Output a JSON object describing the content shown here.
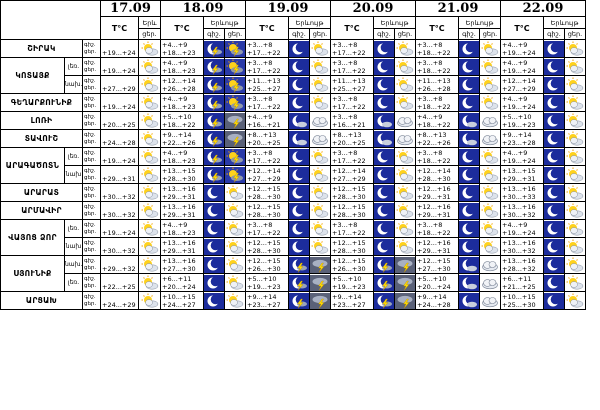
{
  "header": {
    "dates": [
      "17.09",
      "18.09",
      "19.09",
      "20.09",
      "21.09",
      "22.09"
    ],
    "tc_label": "T°C",
    "first_ek_label": "Երև",
    "first_sub_label": "ցեր.",
    "ek_label": "Երևույթ",
    "sub_night": "գիշ.",
    "sub_day": "ցեր."
  },
  "time_labels": {
    "night": "գիշ.",
    "day": "ցեր."
  },
  "regions": [
    {
      "name": "ՇԻՐԱԿ",
      "subs": [
        {
          "label": "",
          "d17": "+19...+24",
          "days": [
            {
              "n": "+4...+9",
              "d": "+18...+23",
              "i": [
                "moon-storm",
                "sun-storm"
              ]
            },
            {
              "n": "+3...+8",
              "d": "+17...+22",
              "i": [
                "moon",
                "sun-cloud"
              ]
            },
            {
              "n": "+3...+8",
              "d": "+17...+22",
              "i": [
                "moon",
                "sun-cloud"
              ]
            },
            {
              "n": "+3...+8",
              "d": "+18...+22",
              "i": [
                "moon",
                "sun-cloud"
              ]
            },
            {
              "n": "+4...+9",
              "d": "+19...+24",
              "i": [
                "moon",
                "sun-cloud"
              ]
            }
          ]
        }
      ]
    },
    {
      "name": "ԿՈՏԱՅՔ",
      "subs": [
        {
          "label": "լեռ.",
          "d17": "+19...+24",
          "days": [
            {
              "n": "+4...+9",
              "d": "+18...+23",
              "i": [
                "moon-storm",
                "sun-storm"
              ]
            },
            {
              "n": "+3...+8",
              "d": "+17...+22",
              "i": [
                "moon",
                "sun-cloud"
              ]
            },
            {
              "n": "+3...+8",
              "d": "+17...+22",
              "i": [
                "moon",
                "sun-cloud"
              ]
            },
            {
              "n": "+3...+8",
              "d": "+18...+22",
              "i": [
                "moon",
                "sun-cloud"
              ]
            },
            {
              "n": "+4...+9",
              "d": "+19...+24",
              "i": [
                "moon",
                "sun-cloud"
              ]
            }
          ]
        },
        {
          "label": "նախ.",
          "d17": "+27...+29",
          "days": [
            {
              "n": "+12...+14",
              "d": "+26...+28",
              "i": [
                "moon-storm",
                "sun-storm"
              ]
            },
            {
              "n": "+11...+13",
              "d": "+25...+27",
              "i": [
                "moon",
                "sun-cloud"
              ]
            },
            {
              "n": "+11...+13",
              "d": "+25...+27",
              "i": [
                "moon",
                "sun-cloud"
              ]
            },
            {
              "n": "+11...+13",
              "d": "+26...+28",
              "i": [
                "moon",
                "sun-cloud"
              ]
            },
            {
              "n": "+12...+14",
              "d": "+27...+29",
              "i": [
                "moon",
                "sun-cloud"
              ]
            }
          ]
        }
      ]
    },
    {
      "name": "ԳԵՂԱՐՔՈՒՆԻՔ",
      "subs": [
        {
          "label": "",
          "d17": "+19...+24",
          "days": [
            {
              "n": "+4...+9",
              "d": "+18...+23",
              "i": [
                "moon-storm",
                "sun-storm"
              ]
            },
            {
              "n": "+3...+8",
              "d": "+17...+22",
              "i": [
                "moon",
                "sun-cloud"
              ]
            },
            {
              "n": "+3...+8",
              "d": "+17...+22",
              "i": [
                "moon",
                "sun-cloud"
              ]
            },
            {
              "n": "+3...+8",
              "d": "+18...+22",
              "i": [
                "moon",
                "sun-cloud"
              ]
            },
            {
              "n": "+4...+9",
              "d": "+19...+24",
              "i": [
                "moon",
                "sun-cloud"
              ]
            }
          ]
        }
      ]
    },
    {
      "name": "ԼՈՌԻ",
      "subs": [
        {
          "label": "",
          "d17": "+20...+25",
          "days": [
            {
              "n": "+5...+10",
              "d": "+18...+22",
              "i": [
                "moon-storm",
                "cloud-storm"
              ]
            },
            {
              "n": "+4...+9",
              "d": "+16...+21",
              "i": [
                "moon-cloud",
                "cloud"
              ]
            },
            {
              "n": "+3...+8",
              "d": "+16...+21",
              "i": [
                "moon-cloud",
                "cloud"
              ]
            },
            {
              "n": "+4...+9",
              "d": "+18...+22",
              "i": [
                "moon-cloud",
                "cloud"
              ]
            },
            {
              "n": "+5...+10",
              "d": "+19...+23",
              "i": [
                "moon",
                "sun-cloud"
              ]
            }
          ]
        }
      ]
    },
    {
      "name": "ՏԱՎՈՒՇ",
      "subs": [
        {
          "label": "",
          "d17": "+24...+28",
          "days": [
            {
              "n": "+9...+14",
              "d": "+22...+26",
              "i": [
                "moon-storm",
                "cloud-storm"
              ]
            },
            {
              "n": "+8...+13",
              "d": "+20...+25",
              "i": [
                "moon-cloud",
                "cloud"
              ]
            },
            {
              "n": "+8...+13",
              "d": "+20...+25",
              "i": [
                "moon-cloud",
                "cloud"
              ]
            },
            {
              "n": "+8...+13",
              "d": "+22...+26",
              "i": [
                "moon-cloud",
                "cloud"
              ]
            },
            {
              "n": "+9...+14",
              "d": "+23...+28",
              "i": [
                "moon",
                "sun-cloud"
              ]
            }
          ]
        }
      ]
    },
    {
      "name": "ԱՐԱԳԱԾՈՏՆ",
      "subs": [
        {
          "label": "լեռ.",
          "d17": "+19...+24",
          "days": [
            {
              "n": "+4...+9",
              "d": "+18...+23",
              "i": [
                "moon-storm",
                "sun-storm"
              ]
            },
            {
              "n": "+3...+8",
              "d": "+17...+22",
              "i": [
                "moon",
                "sun-cloud"
              ]
            },
            {
              "n": "+3...+8",
              "d": "+17...+22",
              "i": [
                "moon",
                "sun-cloud"
              ]
            },
            {
              "n": "+3...+8",
              "d": "+18...+22",
              "i": [
                "moon",
                "sun-cloud"
              ]
            },
            {
              "n": "+4...+9",
              "d": "+19...+24",
              "i": [
                "moon",
                "sun-cloud"
              ]
            }
          ]
        },
        {
          "label": "նախ",
          "d17": "+29...+31",
          "days": [
            {
              "n": "+13...+15",
              "d": "+28...+30",
              "i": [
                "moon-storm",
                "sun-storm"
              ]
            },
            {
              "n": "+12...+14",
              "d": "+27...+29",
              "i": [
                "moon",
                "sun-cloud"
              ]
            },
            {
              "n": "+12...+14",
              "d": "+27...+29",
              "i": [
                "moon",
                "sun-cloud"
              ]
            },
            {
              "n": "+12...+14",
              "d": "+28...+30",
              "i": [
                "moon",
                "sun-cloud"
              ]
            },
            {
              "n": "+13...+15",
              "d": "+29...+31",
              "i": [
                "moon",
                "sun-cloud"
              ]
            }
          ]
        }
      ]
    },
    {
      "name": "ԱՐԱՐԱՏ",
      "subs": [
        {
          "label": "",
          "d17": "+30...+32",
          "days": [
            {
              "n": "+13...+16",
              "d": "+29...+31",
              "i": [
                "moon",
                "sun-cloud"
              ]
            },
            {
              "n": "+12...+15",
              "d": "+28...+30",
              "i": [
                "moon",
                "sun-cloud"
              ]
            },
            {
              "n": "+12...+15",
              "d": "+28...+30",
              "i": [
                "moon",
                "sun-cloud"
              ]
            },
            {
              "n": "+12...+16",
              "d": "+29...+31",
              "i": [
                "moon",
                "sun-cloud"
              ]
            },
            {
              "n": "+13...+16",
              "d": "+30...+33",
              "i": [
                "moon",
                "sun-cloud"
              ]
            }
          ]
        }
      ]
    },
    {
      "name": "ԱՐՄԱՎԻՐ",
      "subs": [
        {
          "label": "",
          "d17": "+30...+32",
          "days": [
            {
              "n": "+13...+16",
              "d": "+29...+31",
              "i": [
                "moon",
                "sun-cloud"
              ]
            },
            {
              "n": "+12...+15",
              "d": "+28...+30",
              "i": [
                "moon",
                "sun-cloud"
              ]
            },
            {
              "n": "+12...+15",
              "d": "+28...+30",
              "i": [
                "moon",
                "sun-cloud"
              ]
            },
            {
              "n": "+12...+16",
              "d": "+29...+31",
              "i": [
                "moon",
                "sun-cloud"
              ]
            },
            {
              "n": "+13...+16",
              "d": "+30...+32",
              "i": [
                "moon",
                "sun-cloud"
              ]
            }
          ]
        }
      ]
    },
    {
      "name": "ՎԱՅՈՑ ՁՈՐ",
      "subs": [
        {
          "label": "լեռ.",
          "d17": "+19...+24",
          "days": [
            {
              "n": "+4...+9",
              "d": "+18...+23",
              "i": [
                "moon",
                "sun-cloud"
              ]
            },
            {
              "n": "+3...+8",
              "d": "+17...+22",
              "i": [
                "moon",
                "sun-cloud"
              ]
            },
            {
              "n": "+3...+8",
              "d": "+17...+22",
              "i": [
                "moon",
                "sun-cloud"
              ]
            },
            {
              "n": "+3...+8",
              "d": "+18...+22",
              "i": [
                "moon",
                "sun-cloud"
              ]
            },
            {
              "n": "+4...+9",
              "d": "+19...+24",
              "i": [
                "moon",
                "sun-cloud"
              ]
            }
          ]
        },
        {
          "label": "նախ",
          "d17": "+30...+32",
          "days": [
            {
              "n": "+13...+16",
              "d": "+29...+31",
              "i": [
                "moon",
                "sun-cloud"
              ]
            },
            {
              "n": "+12...+15",
              "d": "+28...+30",
              "i": [
                "moon",
                "sun-cloud"
              ]
            },
            {
              "n": "+12...+15",
              "d": "+28...+30",
              "i": [
                "moon",
                "sun-cloud"
              ]
            },
            {
              "n": "+12...+16",
              "d": "+29...+31",
              "i": [
                "moon",
                "sun-cloud"
              ]
            },
            {
              "n": "+13...+16",
              "d": "+30...+32",
              "i": [
                "moon",
                "sun-cloud"
              ]
            }
          ]
        }
      ]
    },
    {
      "name": "ՍՅՈՒՆԻՔ",
      "subs": [
        {
          "label": "նախ.",
          "d17": "+29...+32",
          "days": [
            {
              "n": "+13...+16",
              "d": "+27...+30",
              "i": [
                "moon",
                "sun-cloud"
              ]
            },
            {
              "n": "+12...+15",
              "d": "+26...+30",
              "i": [
                "moon-storm",
                "cloud-storm"
              ]
            },
            {
              "n": "+12...+15",
              "d": "+26...+30",
              "i": [
                "moon-storm",
                "cloud-storm"
              ]
            },
            {
              "n": "+12...+15",
              "d": "+27...+30",
              "i": [
                "moon-cloud",
                "cloud"
              ]
            },
            {
              "n": "+13...+16",
              "d": "+28...+32",
              "i": [
                "moon",
                "sun-cloud"
              ]
            }
          ]
        },
        {
          "label": "լեռ.",
          "d17": "+22...+25",
          "days": [
            {
              "n": "+6...+11",
              "d": "+20...+24",
              "i": [
                "moon",
                "sun-cloud"
              ]
            },
            {
              "n": "+5...+10",
              "d": "+19...+23",
              "i": [
                "moon-storm",
                "cloud-storm"
              ]
            },
            {
              "n": "+5...+10",
              "d": "+19...+23",
              "i": [
                "moon-storm",
                "cloud-storm"
              ]
            },
            {
              "n": "+5...+10",
              "d": "+20...+24",
              "i": [
                "moon-cloud",
                "cloud"
              ]
            },
            {
              "n": "+6...+11",
              "d": "+21...+25",
              "i": [
                "moon",
                "sun-cloud"
              ]
            }
          ]
        }
      ]
    },
    {
      "name": "ԱՐՑԱԽ",
      "subs": [
        {
          "label": "",
          "d17": "+24...+29",
          "days": [
            {
              "n": "+10...+15",
              "d": "+24...+27",
              "i": [
                "moon",
                "sun-cloud"
              ]
            },
            {
              "n": "+9...+14",
              "d": "+23...+27",
              "i": [
                "moon-storm",
                "cloud-storm"
              ]
            },
            {
              "n": "+9...+14",
              "d": "+23...+27",
              "i": [
                "moon-storm",
                "cloud-storm"
              ]
            },
            {
              "n": "+9...+14",
              "d": "+24...+28",
              "i": [
                "moon-cloud",
                "cloud"
              ]
            },
            {
              "n": "+10...+15",
              "d": "+25...+30",
              "i": [
                "moon",
                "sun-cloud"
              ]
            }
          ]
        }
      ]
    }
  ]
}
